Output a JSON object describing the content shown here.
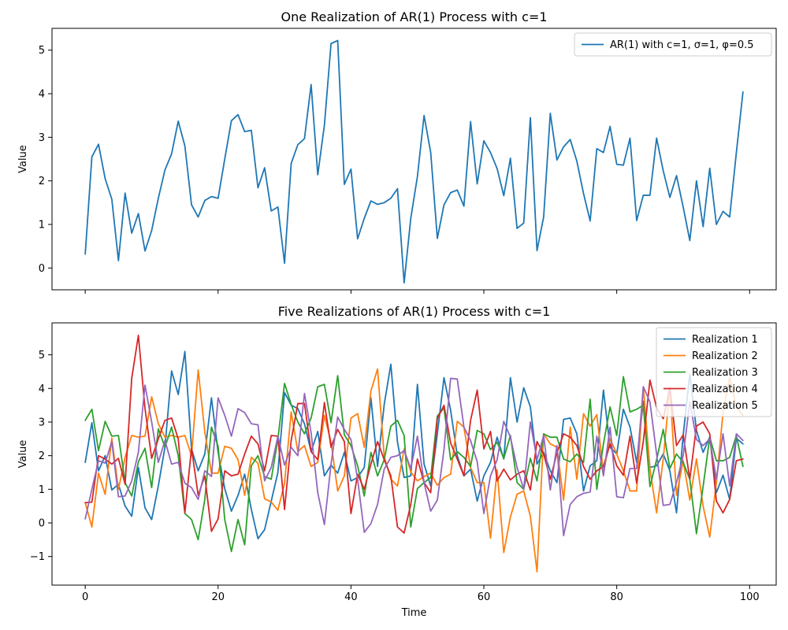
{
  "chart_data": [
    {
      "type": "line",
      "title": "One Realization of AR(1) Process with c=1",
      "xlabel": "",
      "ylabel": "Value",
      "xlim": [
        -5,
        104
      ],
      "ylim": [
        -0.5,
        5.5
      ],
      "xticks": [
        0,
        20,
        40,
        60,
        80,
        100
      ],
      "xticks_labeled": false,
      "yticks": [
        0,
        1,
        2,
        3,
        4,
        5
      ],
      "grid": false,
      "legend_position": "top-right",
      "series": [
        {
          "name": "AR(1) with c=1, σ=1, φ=0.5",
          "color": "#1f77b4",
          "x": [
            0,
            1,
            2,
            3,
            4,
            5,
            6,
            7,
            8,
            9,
            10,
            11,
            12,
            13,
            14,
            15,
            16,
            17,
            18,
            19,
            20,
            21,
            22,
            23,
            24,
            25,
            26,
            27,
            28,
            29,
            30,
            31,
            32,
            33,
            34,
            35,
            36,
            37,
            38,
            39,
            40,
            41,
            42,
            43,
            44,
            45,
            46,
            47,
            48,
            49,
            50,
            51,
            52,
            53,
            54,
            55,
            56,
            57,
            58,
            59,
            60,
            61,
            62,
            63,
            64,
            65,
            66,
            67,
            68,
            69,
            70,
            71,
            72,
            73,
            74,
            75,
            76,
            77,
            78,
            79,
            80,
            81,
            82,
            83,
            84,
            85,
            86,
            87,
            88,
            89,
            90,
            91,
            92,
            93,
            94,
            95,
            96,
            97,
            98,
            99
          ],
          "values": [
            0.32,
            2.55,
            2.84,
            2.05,
            1.58,
            0.17,
            1.72,
            0.8,
            1.25,
            0.39,
            0.86,
            1.6,
            2.25,
            2.62,
            3.37,
            2.8,
            1.45,
            1.17,
            1.55,
            1.64,
            1.6,
            2.5,
            3.38,
            3.52,
            3.13,
            3.16,
            1.84,
            2.3,
            1.31,
            1.4,
            0.11,
            2.4,
            2.83,
            2.97,
            4.21,
            2.14,
            3.28,
            5.15,
            5.22,
            1.92,
            2.27,
            0.67,
            1.14,
            1.54,
            1.46,
            1.5,
            1.6,
            1.82,
            -0.34,
            1.14,
            2.1,
            3.5,
            2.65,
            0.68,
            1.45,
            1.73,
            1.79,
            1.42,
            3.36,
            1.93,
            2.92,
            2.65,
            2.28,
            1.66,
            2.52,
            0.91,
            1.03,
            3.45,
            0.4,
            1.17,
            3.55,
            2.48,
            2.78,
            2.95,
            2.45,
            1.71,
            1.08,
            2.74,
            2.65,
            3.25,
            2.38,
            2.36,
            2.98,
            1.09,
            1.67,
            1.67,
            2.98,
            2.23,
            1.62,
            2.12,
            1.4,
            0.63,
            2.0,
            0.95,
            2.29,
            1.0,
            1.3,
            1.17,
            2.64,
            4.04
          ]
        }
      ]
    },
    {
      "type": "line",
      "title": "Five Realizations of AR(1) Process with c=1",
      "xlabel": "Time",
      "ylabel": "Value",
      "xlim": [
        -5,
        104
      ],
      "ylim": [
        -1.85,
        5.95
      ],
      "xticks": [
        0,
        20,
        40,
        60,
        80,
        100
      ],
      "xticks_labeled": true,
      "yticks": [
        -1,
        0,
        1,
        2,
        3,
        4,
        5
      ],
      "grid": false,
      "legend_position": "top-right",
      "series": [
        {
          "name": "Realization 1",
          "color": "#1f77b4",
          "values": [
            1.8,
            2.98,
            1.55,
            2.0,
            0.98,
            1.15,
            0.5,
            0.2,
            1.65,
            0.45,
            0.1,
            1.1,
            2.25,
            4.52,
            3.82,
            5.1,
            2.2,
            1.55,
            2.05,
            3.72,
            2.1,
            1.02,
            0.35,
            0.82,
            1.45,
            0.4,
            -0.47,
            -0.2,
            0.65,
            1.5,
            3.88,
            3.5,
            3.4,
            2.95,
            2.12,
            2.72,
            1.4,
            1.72,
            1.48,
            2.1,
            1.25,
            1.35,
            1.65,
            3.72,
            1.68,
            3.52,
            4.72,
            2.4,
            1.35,
            1.4,
            4.12,
            1.75,
            1.1,
            2.65,
            4.32,
            3.35,
            2.0,
            1.4,
            1.6,
            0.65,
            1.4,
            1.8,
            2.55,
            1.9,
            4.32,
            3.0,
            4.02,
            3.45,
            1.75,
            2.1,
            1.55,
            1.2,
            3.08,
            3.12,
            2.65,
            0.95,
            1.7,
            1.85,
            3.95,
            2.25,
            2.05,
            3.38,
            2.85,
            1.8,
            3.62,
            1.65,
            1.7,
            2.05,
            1.55,
            0.3,
            2.6,
            4.42,
            2.75,
            2.1,
            2.55,
            0.9,
            1.42,
            0.7,
            2.52,
            2.35
          ]
        },
        {
          "name": "Realization 2",
          "color": "#ff7f0e",
          "values": [
            0.6,
            -0.12,
            1.48,
            0.85,
            2.52,
            1.0,
            1.95,
            2.6,
            2.55,
            2.58,
            3.75,
            2.95,
            2.55,
            2.6,
            2.55,
            2.6,
            2.0,
            4.55,
            2.7,
            1.48,
            1.48,
            2.28,
            2.22,
            1.88,
            0.82,
            1.95,
            1.78,
            0.72,
            0.62,
            0.38,
            1.18,
            3.3,
            2.12,
            2.3,
            1.68,
            1.8,
            3.2,
            2.4,
            0.95,
            1.4,
            3.12,
            3.25,
            2.25,
            3.92,
            4.58,
            1.98,
            1.3,
            1.1,
            2.2,
            1.52,
            1.25,
            1.38,
            1.48,
            1.12,
            1.35,
            1.45,
            3.02,
            2.85,
            1.65,
            1.2,
            1.2,
            -0.45,
            1.58,
            -0.88,
            0.18,
            0.85,
            0.95,
            0.2,
            -1.45,
            2.65,
            2.35,
            2.25,
            0.68,
            2.85,
            1.3,
            3.25,
            2.88,
            3.22,
            1.5,
            2.5,
            2.05,
            1.55,
            0.95,
            0.95,
            4.05,
            1.6,
            0.3,
            1.9,
            4.0,
            0.82,
            1.85,
            0.68,
            1.9,
            0.5,
            -0.42,
            1.2,
            3.28,
            4.32,
            3.45,
            3.2
          ]
        },
        {
          "name": "Realization 3",
          "color": "#2ca02c",
          "values": [
            3.05,
            3.38,
            2.15,
            3.02,
            2.58,
            2.6,
            1.2,
            0.8,
            1.82,
            2.22,
            1.05,
            2.8,
            2.25,
            2.85,
            2.0,
            0.28,
            0.1,
            -0.5,
            0.7,
            2.85,
            2.28,
            0.1,
            -0.85,
            0.1,
            -0.65,
            1.7,
            2.0,
            1.38,
            1.3,
            2.5,
            4.15,
            3.52,
            3.0,
            2.65,
            3.12,
            4.05,
            4.12,
            2.98,
            4.38,
            2.62,
            2.3,
            1.7,
            0.8,
            2.1,
            1.4,
            1.88,
            2.88,
            3.05,
            2.6,
            -0.12,
            1.02,
            1.2,
            1.35,
            3.18,
            3.42,
            1.88,
            2.12,
            1.95,
            1.68,
            2.75,
            2.65,
            2.18,
            2.4,
            1.92,
            2.6,
            1.2,
            1.0,
            1.92,
            1.25,
            2.65,
            2.55,
            2.55,
            1.9,
            1.82,
            2.05,
            1.8,
            3.68,
            1.0,
            2.35,
            3.45,
            2.6,
            4.35,
            3.3,
            3.38,
            3.5,
            1.08,
            1.88,
            2.78,
            1.62,
            2.05,
            1.8,
            1.3,
            -0.32,
            1.08,
            2.55,
            1.85,
            1.85,
            1.95,
            2.6,
            1.68
          ]
        },
        {
          "name": "Realization 4",
          "color": "#d62728",
          "values": [
            0.6,
            0.62,
            2.0,
            1.9,
            1.75,
            1.92,
            1.15,
            4.3,
            5.58,
            3.4,
            1.92,
            2.5,
            3.05,
            3.12,
            2.5,
            0.3,
            2.22,
            0.82,
            1.4,
            -0.25,
            0.12,
            1.55,
            1.4,
            1.45,
            2.05,
            2.58,
            2.35,
            1.55,
            2.6,
            2.58,
            0.4,
            2.45,
            3.55,
            3.55,
            2.12,
            1.88,
            3.58,
            2.25,
            2.78,
            2.42,
            0.28,
            1.45,
            1.0,
            1.75,
            2.42,
            1.88,
            1.4,
            -0.12,
            -0.3,
            0.55,
            1.9,
            1.2,
            0.9,
            3.1,
            3.5,
            2.38,
            1.9,
            1.4,
            3.05,
            3.95,
            2.2,
            2.72,
            1.25,
            1.6,
            1.28,
            1.45,
            1.55,
            0.98,
            2.42,
            2.05,
            1.3,
            2.08,
            2.65,
            2.55,
            2.3,
            1.68,
            1.3,
            1.55,
            1.68,
            2.35,
            1.7,
            1.42,
            2.58,
            1.18,
            2.42,
            4.25,
            3.42,
            3.1,
            4.02,
            2.3,
            2.62,
            1.3,
            2.88,
            3.0,
            2.65,
            0.65,
            0.3,
            0.7,
            1.85,
            1.9
          ]
        },
        {
          "name": "Realization 5",
          "color": "#9467bd",
          "values": [
            0.12,
            1.0,
            1.85,
            1.78,
            2.42,
            0.78,
            0.8,
            1.25,
            2.1,
            4.1,
            3.0,
            1.8,
            2.45,
            1.75,
            1.8,
            1.18,
            1.05,
            0.7,
            1.55,
            1.38,
            3.72,
            3.2,
            2.58,
            3.4,
            3.28,
            2.95,
            2.92,
            1.25,
            1.65,
            2.58,
            1.72,
            2.25,
            2.0,
            3.85,
            2.68,
            0.9,
            -0.05,
            1.75,
            3.15,
            2.78,
            2.48,
            1.3,
            -0.28,
            -0.02,
            0.55,
            1.6,
            1.95,
            2.0,
            2.15,
            1.62,
            2.58,
            1.2,
            0.35,
            0.68,
            2.18,
            4.3,
            4.28,
            2.85,
            2.45,
            1.82,
            0.28,
            1.4,
            1.88,
            3.02,
            2.55,
            1.65,
            1.0,
            3.0,
            1.88,
            2.6,
            0.98,
            2.3,
            -0.38,
            0.55,
            0.78,
            0.88,
            0.92,
            2.58,
            1.4,
            2.85,
            0.78,
            0.75,
            1.62,
            1.62,
            4.05,
            3.6,
            2.05,
            0.52,
            0.55,
            1.2,
            2.0,
            3.6,
            2.48,
            2.3,
            2.5,
            1.3,
            2.65,
            1.1,
            2.65,
            2.45
          ]
        }
      ]
    }
  ]
}
